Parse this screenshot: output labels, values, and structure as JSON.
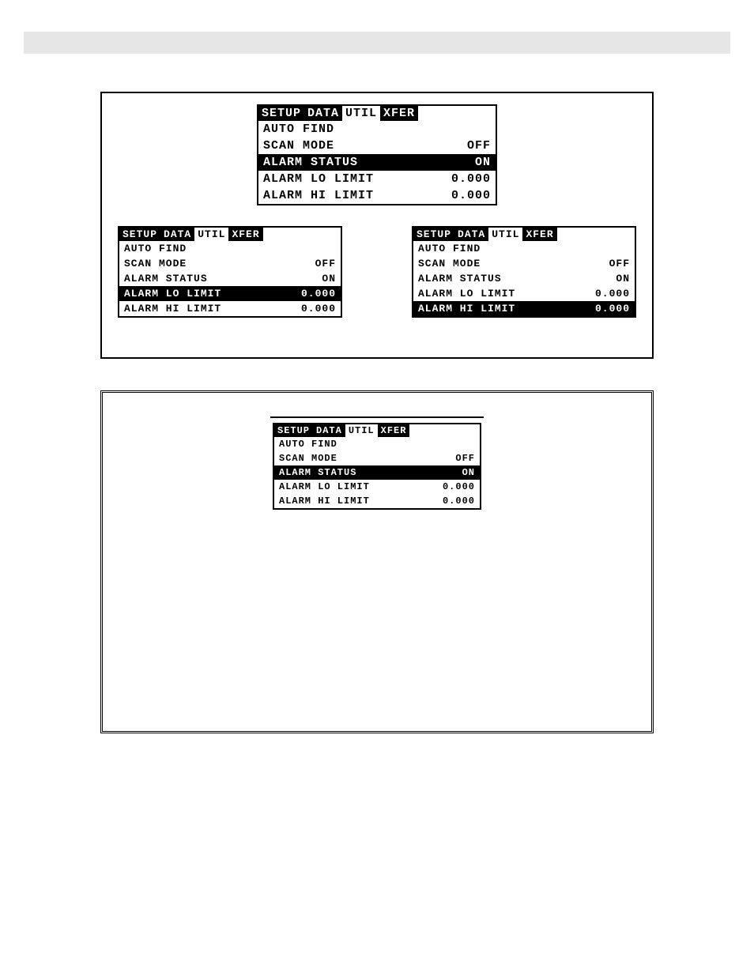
{
  "tabs": [
    "SETUP",
    "DATA",
    "UTIL",
    "XFER"
  ],
  "active_tab_index": 2,
  "rows": [
    {
      "label": "AUTO FIND",
      "value": ""
    },
    {
      "label": "SCAN MODE",
      "value": "OFF"
    },
    {
      "label": "ALARM STATUS",
      "value": "ON"
    },
    {
      "label": "ALARM LO LIMIT",
      "value": "0.000"
    },
    {
      "label": "ALARM HI LIMIT",
      "value": "0.000"
    }
  ],
  "panels": {
    "top": {
      "highlight_row": 2
    },
    "bottom_left": {
      "highlight_row": 3
    },
    "bottom_right": {
      "highlight_row": 4
    },
    "figure2": {
      "highlight_row": 2
    }
  },
  "colors": {
    "fg": "#000000",
    "bg": "#ffffff",
    "topbar": "#e6e6e6"
  }
}
